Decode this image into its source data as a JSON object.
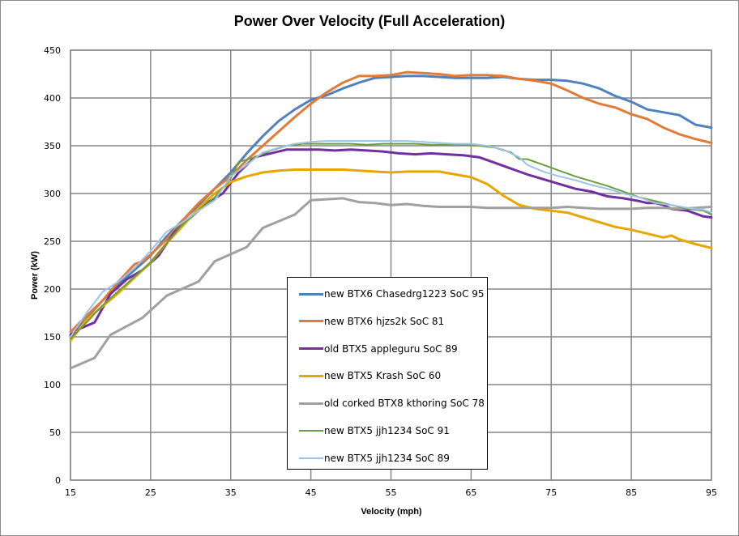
{
  "chart_data": {
    "type": "line",
    "title": "Power Over Velocity (Full Acceleration)",
    "xlabel": "Velocity (mph)",
    "ylabel": "Power (kW)",
    "xlim": [
      15,
      95
    ],
    "ylim": [
      0,
      450
    ],
    "x_ticks": [
      "15",
      "25",
      "35",
      "45",
      "55",
      "65",
      "75",
      "85",
      "95"
    ],
    "y_ticks": [
      "0",
      "50",
      "100",
      "150",
      "200",
      "250",
      "300",
      "350",
      "400",
      "450"
    ],
    "grid": true,
    "legend_position": "center",
    "series": [
      {
        "name": "new BTX6 Chasedrg1223 SoC 95",
        "color": "#4f81bd",
        "width": 3,
        "x": [
          15,
          17,
          19,
          21,
          23,
          25,
          27,
          29,
          31,
          33,
          35,
          37,
          39,
          41,
          43,
          45,
          47,
          49,
          51,
          53,
          55,
          57,
          59,
          61,
          63,
          65,
          67,
          69,
          71,
          73,
          75,
          77,
          79,
          81,
          83,
          85,
          87,
          89,
          91,
          93,
          95
        ],
        "values": [
          150,
          170,
          188,
          205,
          220,
          235,
          255,
          272,
          288,
          305,
          322,
          342,
          360,
          376,
          388,
          398,
          403,
          410,
          416,
          421,
          422,
          423,
          423,
          422,
          421,
          421,
          421,
          422,
          420,
          419,
          419,
          418,
          415,
          410,
          402,
          396,
          388,
          385,
          382,
          372,
          369
        ]
      },
      {
        "name": "new BTX6 hjzs2k SoC 81",
        "color": "#e07b39",
        "width": 3,
        "x": [
          15,
          17,
          19,
          21,
          23,
          24,
          25,
          27,
          29,
          31,
          33,
          35,
          37,
          39,
          41,
          43,
          45,
          47,
          49,
          51,
          53,
          55,
          57,
          59,
          61,
          63,
          65,
          67,
          69,
          71,
          73,
          75,
          77,
          79,
          81,
          83,
          85,
          87,
          89,
          91,
          93,
          95
        ],
        "values": [
          155,
          172,
          188,
          208,
          226,
          229,
          236,
          252,
          272,
          290,
          305,
          318,
          335,
          350,
          365,
          380,
          394,
          406,
          416,
          423,
          423,
          424,
          427,
          426,
          425,
          423,
          424,
          424,
          423,
          420,
          418,
          415,
          408,
          400,
          394,
          390,
          383,
          378,
          369,
          362,
          357,
          353
        ]
      },
      {
        "name": "old BTX5 appleguru SoC 89",
        "color": "#7030a0",
        "width": 3,
        "x": [
          15,
          16,
          18,
          20,
          22,
          24,
          26,
          28,
          30,
          32,
          34,
          36,
          38,
          40,
          42,
          44,
          46,
          48,
          50,
          52,
          54,
          56,
          58,
          60,
          62,
          64,
          66,
          68,
          70,
          72,
          74,
          76,
          78,
          80,
          82,
          84,
          86,
          87,
          88,
          89,
          90,
          92,
          94,
          95
        ],
        "values": [
          152,
          158,
          165,
          195,
          210,
          220,
          235,
          260,
          275,
          290,
          300,
          322,
          338,
          342,
          346,
          346,
          346,
          345,
          346,
          345,
          344,
          342,
          341,
          342,
          341,
          340,
          338,
          332,
          326,
          320,
          315,
          310,
          305,
          302,
          297,
          295,
          292,
          290,
          290,
          288,
          284,
          282,
          276,
          275
        ]
      },
      {
        "name": "new BTX5 Krash SoC 60",
        "color": "#e6a800",
        "width": 3,
        "x": [
          15,
          17,
          19,
          21,
          23,
          25,
          27,
          29,
          31,
          33,
          35,
          37,
          39,
          41,
          43,
          45,
          47,
          49,
          51,
          53,
          55,
          57,
          59,
          61,
          63,
          65,
          67,
          69,
          71,
          73,
          75,
          77,
          79,
          81,
          83,
          85,
          87,
          89,
          90,
          91,
          93,
          95
        ],
        "values": [
          146,
          168,
          182,
          196,
          212,
          228,
          248,
          266,
          285,
          300,
          312,
          318,
          322,
          324,
          325,
          325,
          325,
          325,
          324,
          323,
          322,
          323,
          323,
          323,
          320,
          317,
          310,
          298,
          288,
          284,
          282,
          280,
          275,
          270,
          265,
          262,
          258,
          254,
          256,
          252,
          247,
          243
        ]
      },
      {
        "name": "old corked BTX8 kthoring SoC 78",
        "color": "#a0a0a0",
        "width": 3,
        "x": [
          15,
          18,
          20,
          24,
          27,
          31,
          33,
          37,
          39,
          43,
          45,
          47,
          49,
          51,
          53,
          55,
          57,
          59,
          61,
          63,
          65,
          67,
          69,
          71,
          73,
          75,
          77,
          79,
          81,
          83,
          85,
          87,
          89,
          91,
          93,
          95
        ],
        "values": [
          117,
          128,
          152,
          170,
          193,
          208,
          229,
          244,
          264,
          278,
          293,
          294,
          295,
          291,
          290,
          288,
          289,
          287,
          286,
          286,
          286,
          285,
          285,
          285,
          285,
          285,
          286,
          285,
          284,
          284,
          284,
          285,
          285,
          284,
          285,
          286
        ]
      },
      {
        "name": "new BTX5 jjh1234 SoC 91",
        "color": "#6b9e3c",
        "width": 2,
        "x": [
          15,
          17,
          19,
          21,
          23,
          25,
          27,
          29,
          31,
          33,
          35,
          36,
          38,
          40,
          42,
          44,
          46,
          48,
          50,
          52,
          54,
          56,
          58,
          60,
          62,
          64,
          66,
          68,
          70,
          71,
          72,
          74,
          76,
          78,
          80,
          82,
          84,
          86,
          88,
          90,
          92,
          94,
          95
        ],
        "values": [
          148,
          165,
          183,
          198,
          213,
          228,
          248,
          268,
          282,
          296,
          316,
          333,
          338,
          345,
          350,
          352,
          352,
          352,
          352,
          351,
          352,
          352,
          352,
          351,
          351,
          351,
          350,
          348,
          343,
          336,
          336,
          330,
          324,
          318,
          313,
          308,
          302,
          296,
          292,
          288,
          284,
          282,
          278
        ]
      },
      {
        "name": "new BTX5 jjh1234 SoC 89",
        "color": "#9dc3e6",
        "width": 2,
        "x": [
          15,
          17,
          19,
          21,
          23,
          25,
          27,
          29,
          31,
          33,
          35,
          37,
          39,
          41,
          43,
          45,
          47,
          49,
          51,
          53,
          55,
          57,
          59,
          61,
          63,
          65,
          67,
          69,
          71,
          72,
          74,
          76,
          78,
          80,
          82,
          84,
          86,
          88,
          90,
          92,
          94,
          95
        ],
        "values": [
          150,
          175,
          197,
          208,
          222,
          240,
          260,
          270,
          282,
          293,
          318,
          330,
          343,
          348,
          352,
          354,
          355,
          355,
          355,
          355,
          355,
          355,
          354,
          353,
          352,
          352,
          350,
          346,
          338,
          330,
          323,
          318,
          314,
          309,
          305,
          300,
          296,
          290,
          288,
          285,
          283,
          280
        ]
      }
    ]
  }
}
